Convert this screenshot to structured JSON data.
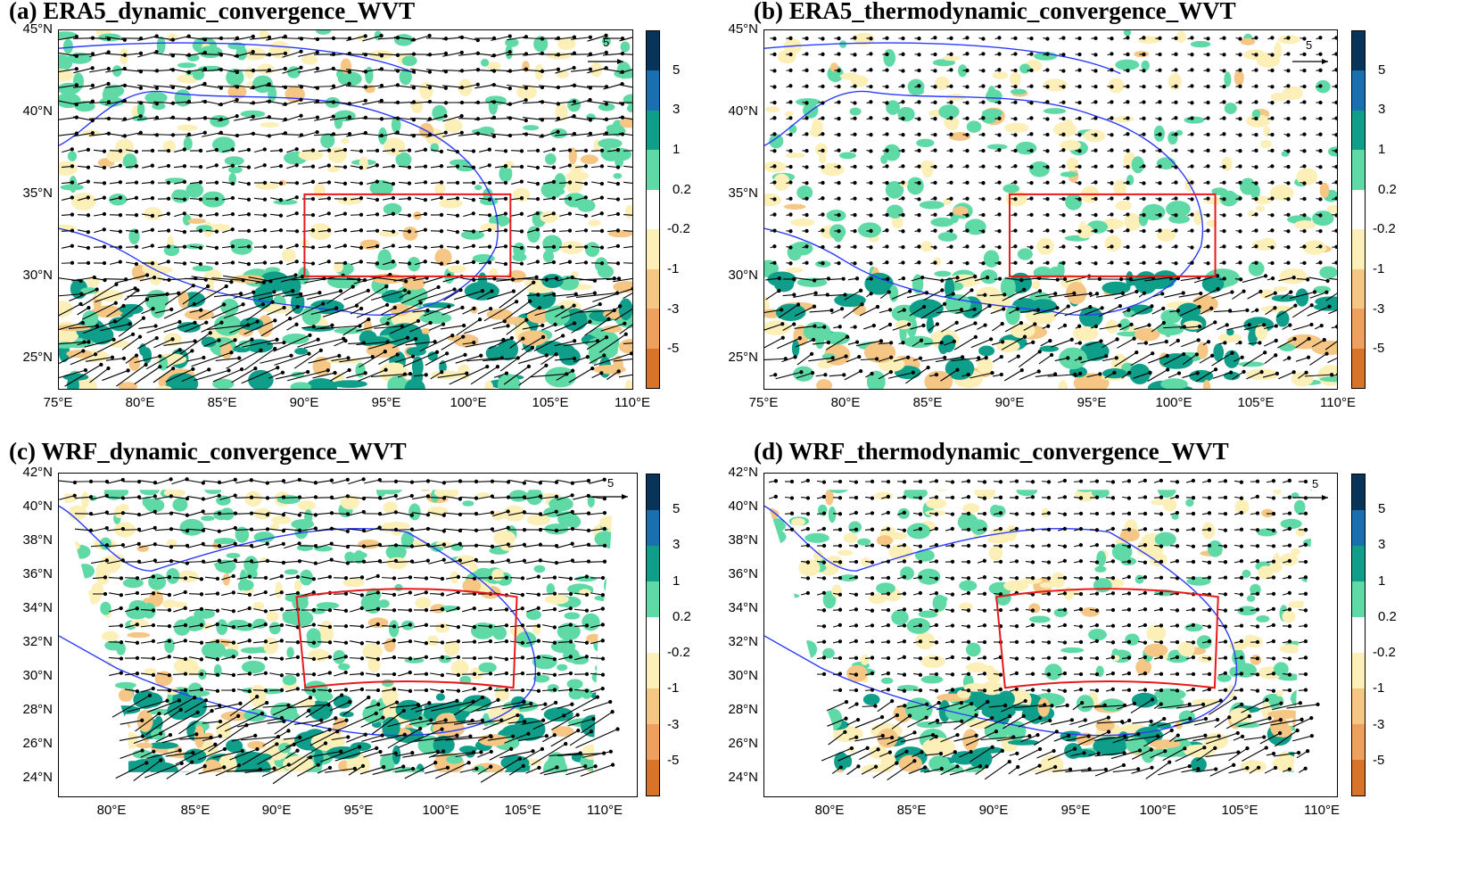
{
  "panels": [
    {
      "id": "a",
      "title": "(a) ERA5_dynamic_convergence_WVT",
      "lat_labels": [
        "45°N",
        "40°N",
        "35°N",
        "30°N",
        "25°N"
      ],
      "lon_labels": [
        "75°E",
        "80°E",
        "85°E",
        "90°E",
        "95°E",
        "100°E",
        "105°E",
        "110°E"
      ],
      "ref_vector": "5"
    },
    {
      "id": "b",
      "title": "(b) ERA5_thermodynamic_convergence_WVT",
      "lat_labels": [
        "45°N",
        "40°N",
        "35°N",
        "30°N",
        "25°N"
      ],
      "lon_labels": [
        "75°E",
        "80°E",
        "85°E",
        "90°E",
        "95°E",
        "100°E",
        "105°E",
        "110°E"
      ],
      "ref_vector": "5"
    },
    {
      "id": "c",
      "title": "(c) WRF_dynamic_convergence_WVT",
      "lat_labels": [
        "42°N",
        "40°N",
        "38°N",
        "36°N",
        "34°N",
        "32°N",
        "30°N",
        "28°N",
        "26°N",
        "24°N"
      ],
      "lon_labels": [
        "80°E",
        "85°E",
        "90°E",
        "95°E",
        "100°E",
        "105°E",
        "110°E"
      ],
      "ref_vector": "5"
    },
    {
      "id": "d",
      "title": "(d) WRF_thermodynamic_convergence_WVT",
      "lat_labels": [
        "42°N",
        "40°N",
        "38°N",
        "36°N",
        "34°N",
        "32°N",
        "30°N",
        "28°N",
        "26°N",
        "24°N"
      ],
      "lon_labels": [
        "80°E",
        "85°E",
        "90°E",
        "95°E",
        "100°E",
        "105°E",
        "110°E"
      ],
      "ref_vector": "5"
    }
  ],
  "colorbar": {
    "labels": [
      "5",
      "3",
      "1",
      "0.2",
      "-0.2",
      "-1",
      "-3",
      "-5"
    ],
    "colors": [
      "#08345a",
      "#1a6fae",
      "#0e9e8a",
      "#5fd9a6",
      "#ffffff",
      "#fcefb8",
      "#f5c684",
      "#eea15e",
      "#d7742a"
    ]
  },
  "colors": {
    "box": "#e8191c",
    "coast": "#2b3cff",
    "positive": "#5fd9a6",
    "positive_dark": "#0e9e8a",
    "negative": "#fcefb8",
    "negative_mid": "#f5c684",
    "negative_dark": "#d7742a"
  }
}
